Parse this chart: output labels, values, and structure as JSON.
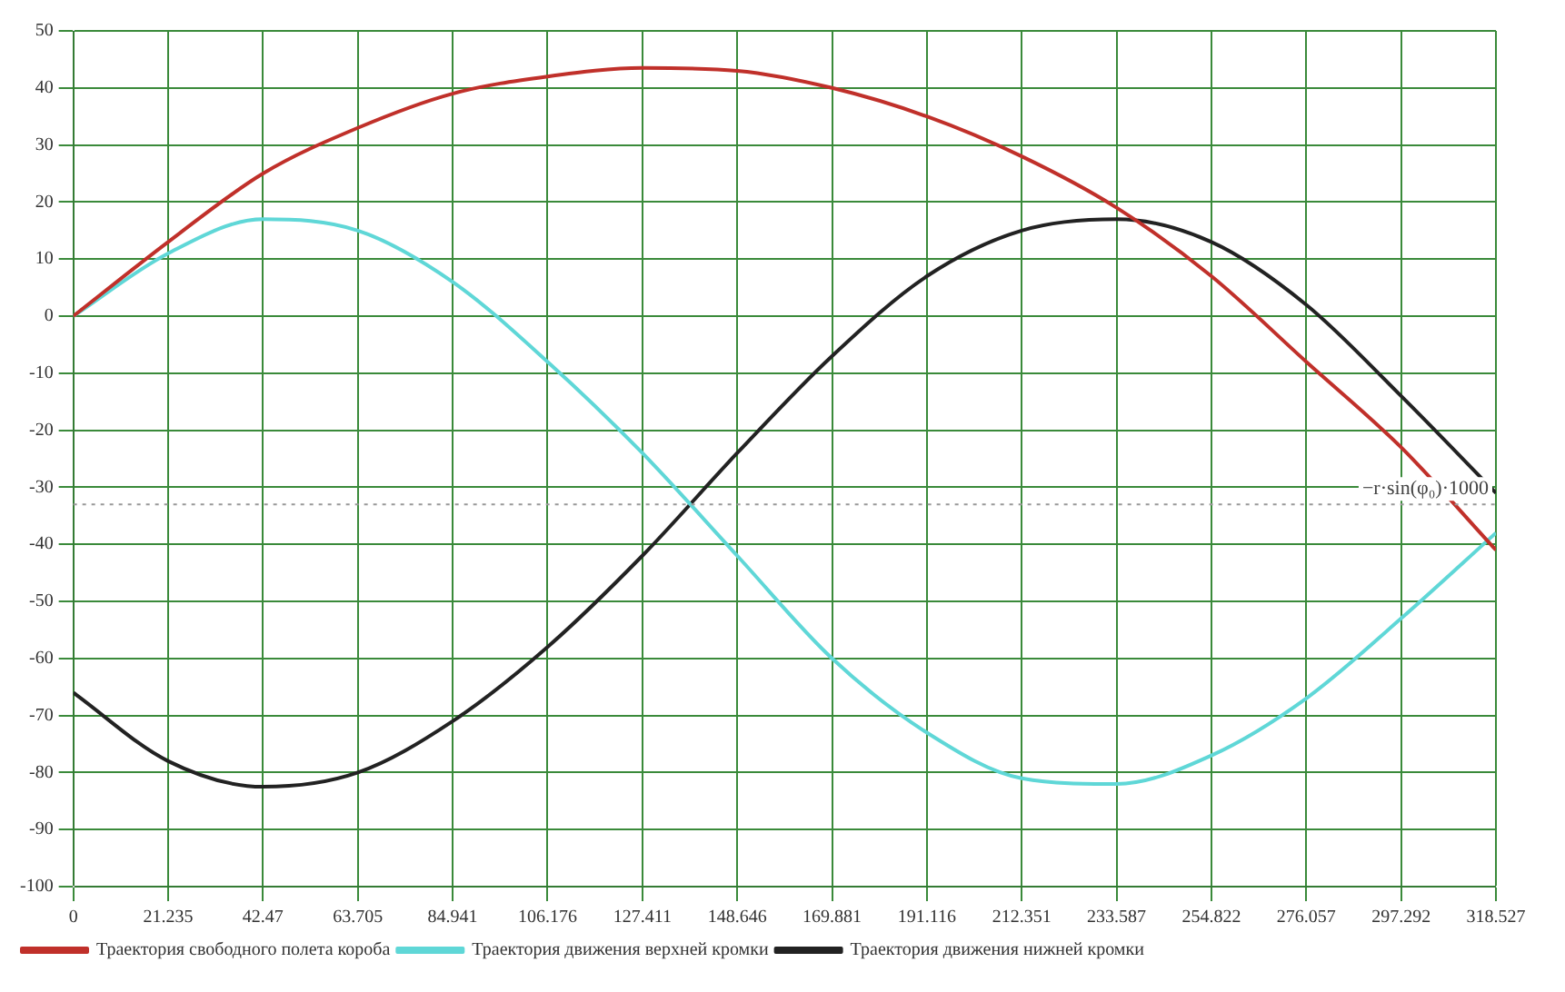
{
  "chart_data": {
    "type": "line",
    "x": [
      0,
      21.235,
      42.47,
      63.705,
      84.941,
      106.176,
      127.411,
      148.646,
      169.881,
      191.116,
      212.351,
      233.587,
      254.822,
      276.057,
      297.292,
      318.527
    ],
    "series": [
      {
        "name": "Траектория свободного полета короба",
        "color": "#c0302a",
        "values": [
          0,
          13,
          25,
          33,
          39,
          42,
          43.5,
          43,
          40,
          35,
          28,
          19,
          7,
          -8,
          -23,
          -41
        ]
      },
      {
        "name": "Траектория движения верхней кромки",
        "color": "#5fd7d7",
        "values": [
          0,
          11,
          17,
          15,
          6,
          -8,
          -24,
          -42,
          -60,
          -73,
          -81,
          -82,
          -77,
          -67,
          -53,
          -38
        ]
      },
      {
        "name": "Траектория движения нижней кромки",
        "color": "#222222",
        "values": [
          -66,
          -78,
          -82.5,
          -80,
          -71,
          -58,
          -42,
          -24,
          -7,
          7,
          15,
          17,
          13,
          2,
          -14,
          -31
        ]
      }
    ],
    "xlim": [
      0,
      318.527
    ],
    "xticks": [
      0,
      21.235,
      42.47,
      63.705,
      84.941,
      106.176,
      127.411,
      148.646,
      169.881,
      191.116,
      212.351,
      233.587,
      254.822,
      276.057,
      297.292,
      318.527
    ],
    "ylim": [
      -100,
      50
    ],
    "yticks": [
      -100,
      -90,
      -80,
      -70,
      -60,
      -50,
      -40,
      -30,
      -20,
      -10,
      0,
      10,
      20,
      30,
      40,
      50
    ],
    "ref_lines": [
      {
        "axis": "y",
        "value": -33,
        "label": "−r·sin(φ₀)·1000",
        "color": "#999999",
        "line_style": "dotted"
      }
    ],
    "grid": true,
    "legend": "bottom left",
    "marker": "none",
    "line_style": "solid"
  }
}
